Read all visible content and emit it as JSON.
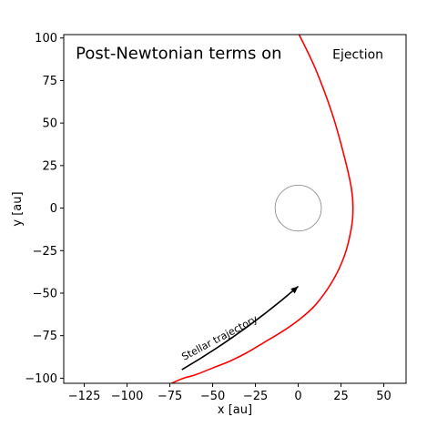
{
  "chart_data": {
    "type": "line",
    "title": "",
    "xlabel": "x [au]",
    "ylabel": "y [au]",
    "xlim": [
      -137,
      63
    ],
    "ylim": [
      -103,
      102
    ],
    "xticks": [
      -125,
      -100,
      -75,
      -50,
      -25,
      0,
      25,
      50
    ],
    "xtick_labels": [
      "−125",
      "−100",
      "−75",
      "−50",
      "−25",
      "0",
      "25",
      "50"
    ],
    "yticks": [
      -100,
      -75,
      -50,
      -25,
      0,
      25,
      50,
      75,
      100
    ],
    "ytick_labels": [
      "−100",
      "−75",
      "−50",
      "−25",
      "0",
      "25",
      "50",
      "75",
      "100"
    ],
    "grid": false,
    "series": [
      {
        "color": "#ff0000",
        "points": [
          [
            0,
            103
          ],
          [
            10,
            82
          ],
          [
            20,
            55
          ],
          [
            27,
            30
          ],
          [
            31,
            12
          ],
          [
            32,
            0
          ],
          [
            31,
            -12
          ],
          [
            27,
            -28
          ],
          [
            20,
            -43
          ],
          [
            10,
            -57
          ],
          [
            0,
            -66
          ],
          [
            -10,
            -73
          ],
          [
            -20,
            -79
          ],
          [
            -30,
            -85
          ],
          [
            -40,
            -90
          ],
          [
            -50,
            -94
          ],
          [
            -60,
            -98
          ],
          [
            -67,
            -100
          ],
          [
            -74,
            -103
          ]
        ]
      }
    ],
    "circle": {
      "cx": 0,
      "cy": 0,
      "r": 13.5,
      "color": "#808080"
    },
    "arrow": {
      "from": [
        -68,
        -95
      ],
      "to": [
        0,
        -46
      ],
      "label": "Stellar trajectory",
      "label_x": -45,
      "label_y": -78,
      "label_rotation_deg": -28
    },
    "annotations": [
      {
        "text": "Post-Newtonian terms on",
        "x": -130,
        "y": 91,
        "style": "big"
      },
      {
        "text": "Ejection",
        "x": 20,
        "y": 91,
        "style": "med"
      }
    ]
  }
}
